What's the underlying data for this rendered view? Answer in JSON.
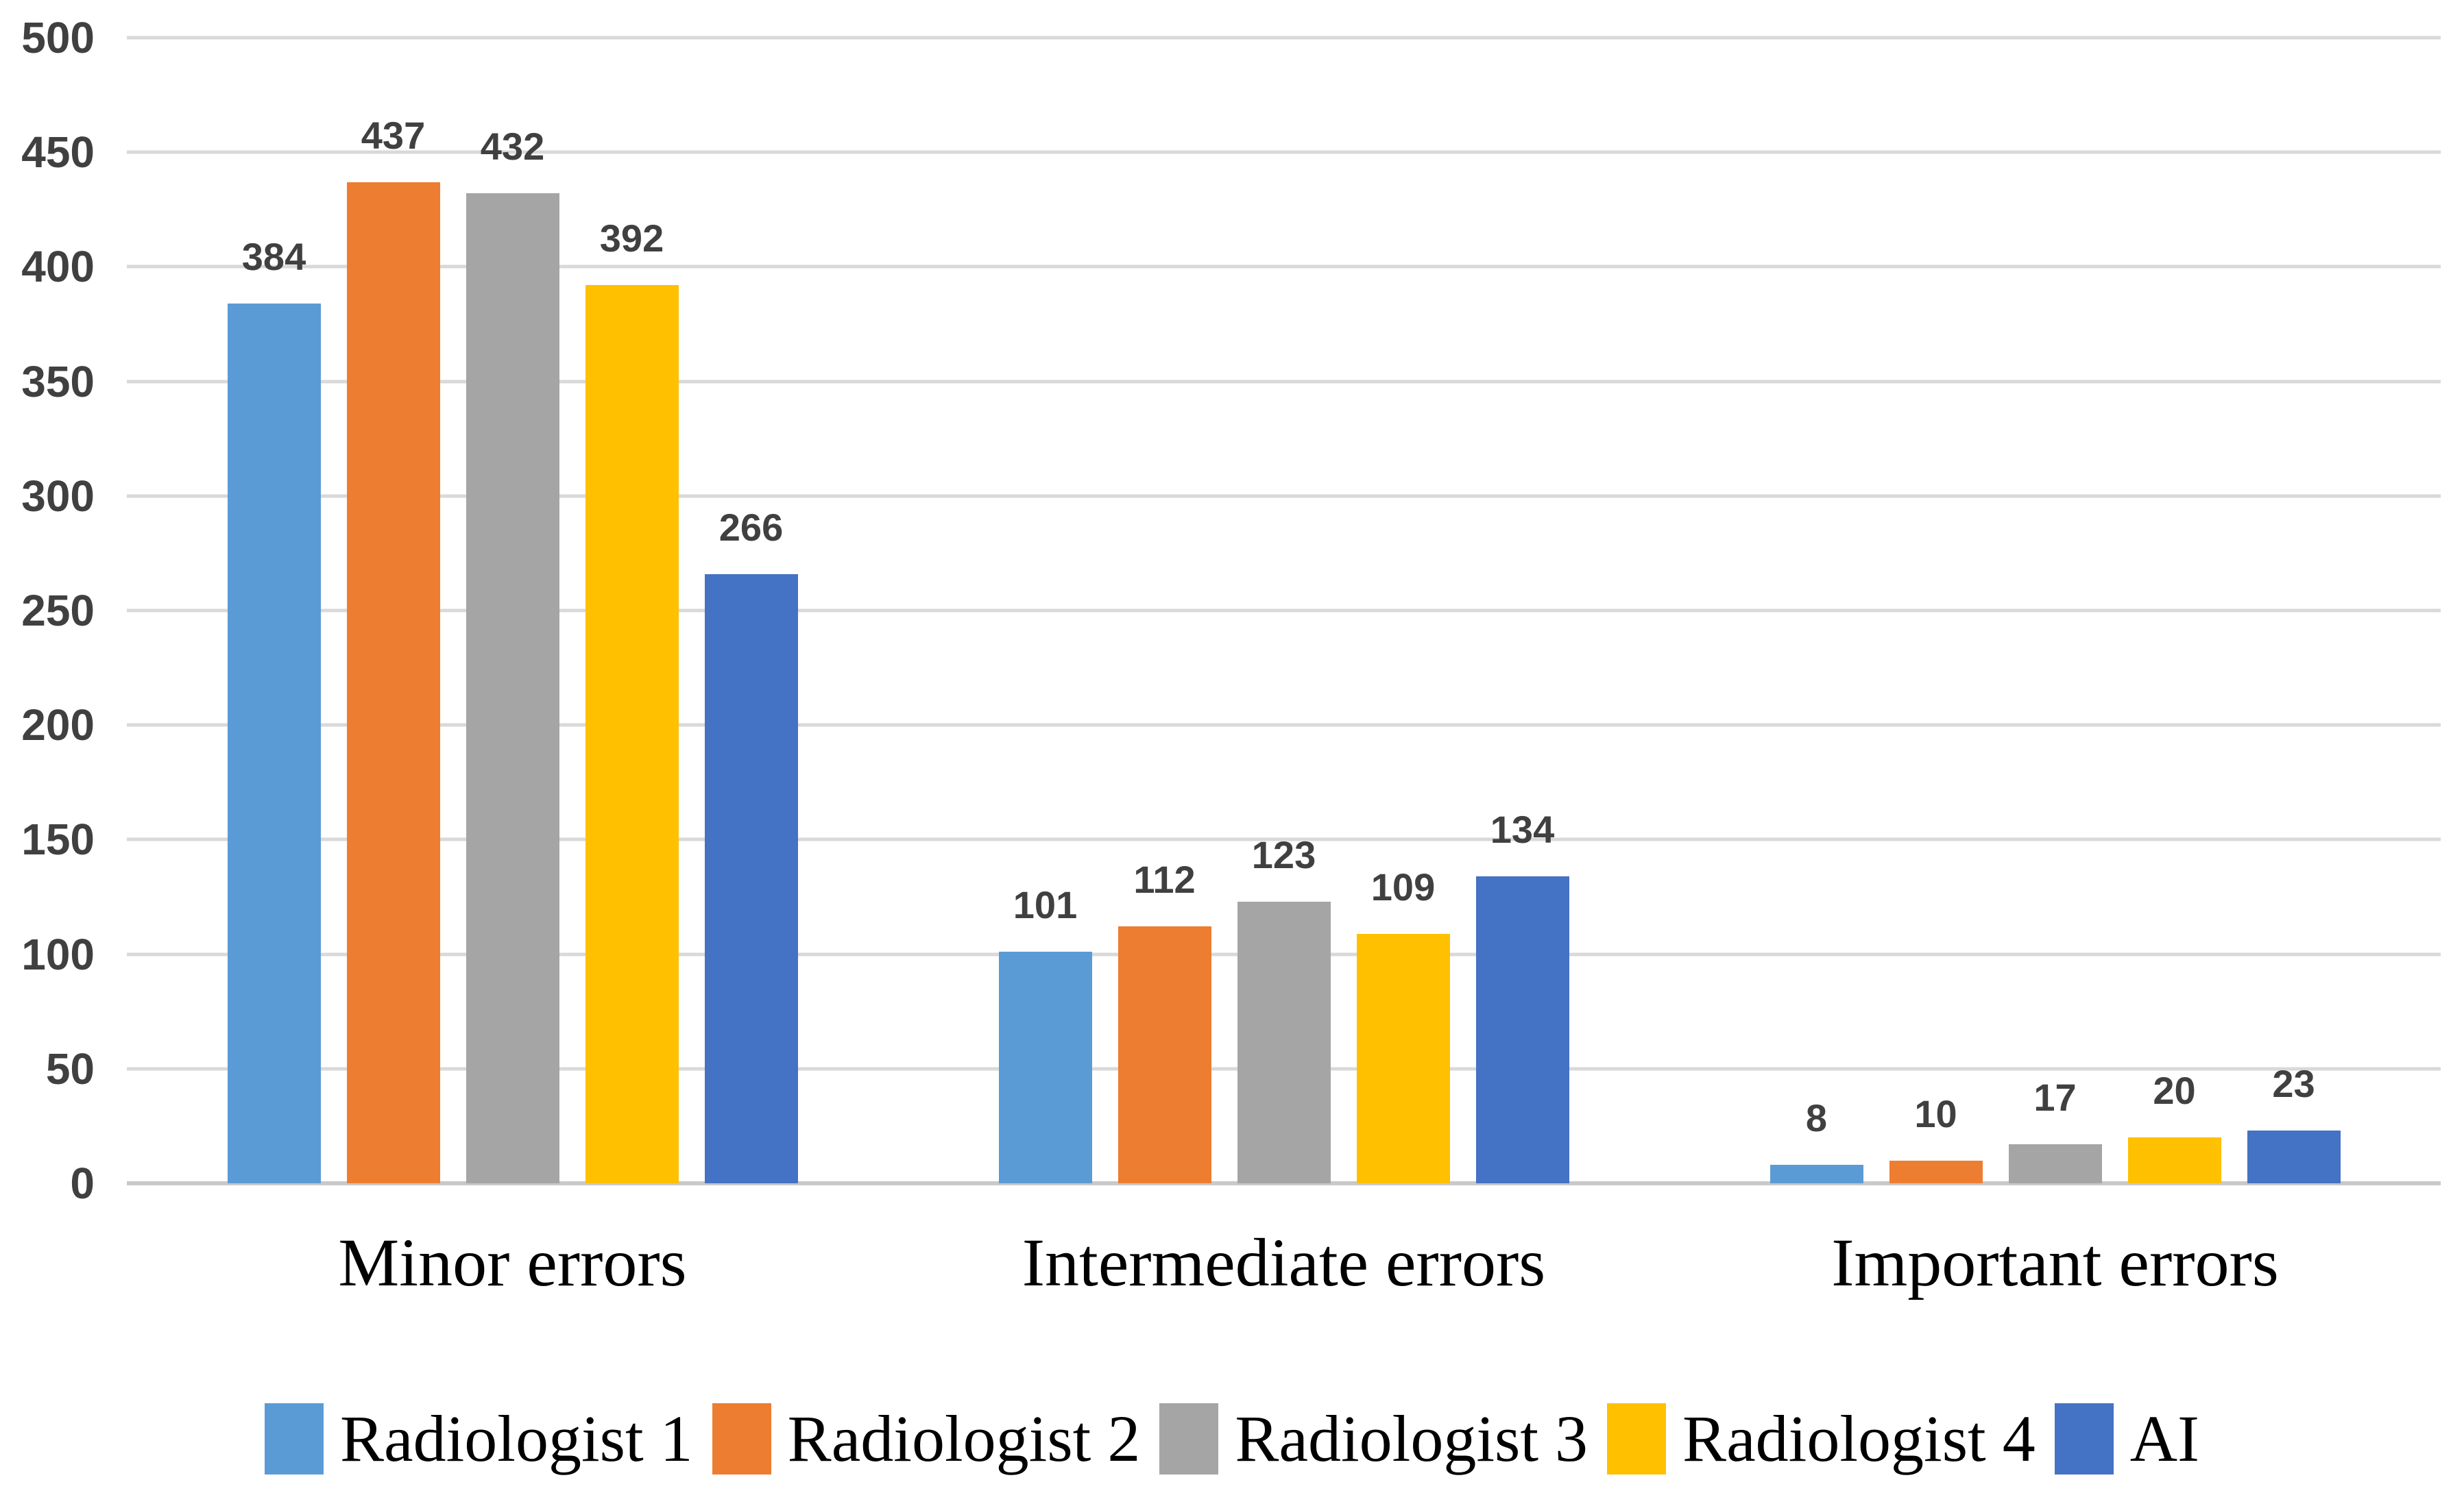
{
  "chart_data": {
    "type": "bar",
    "title": "",
    "categories": [
      "Minor errors",
      "Intermediate errors",
      "Important errors"
    ],
    "series": [
      {
        "name": "Radiologist 1",
        "color": "#5B9BD5",
        "values": [
          384,
          101,
          8
        ]
      },
      {
        "name": "Radiologist 2",
        "color": "#ED7D31",
        "values": [
          437,
          112,
          10
        ]
      },
      {
        "name": "Radiologist 3",
        "color": "#A5A5A5",
        "values": [
          432,
          123,
          17
        ]
      },
      {
        "name": "Radiologist 4",
        "color": "#FFC000",
        "values": [
          392,
          109,
          20
        ]
      },
      {
        "name": "AI",
        "color": "#4472C4",
        "values": [
          266,
          134,
          23
        ]
      }
    ],
    "y_axis": {
      "min": 0,
      "max": 500,
      "step": 50,
      "tick_labels": [
        "0",
        "50",
        "100",
        "150",
        "200",
        "250",
        "300",
        "350",
        "400",
        "450",
        "500"
      ]
    },
    "data_labels": true,
    "grid": true,
    "legend_position": "bottom",
    "xlabel": "",
    "ylabel": ""
  },
  "colors": {
    "background": "#FFFFFF",
    "gridline": "#D9D9D9",
    "baseline": "#C9C9C9",
    "axis_label": "#404040",
    "data_label": "#404040",
    "category_label": "#000000",
    "legend_label": "#000000"
  }
}
